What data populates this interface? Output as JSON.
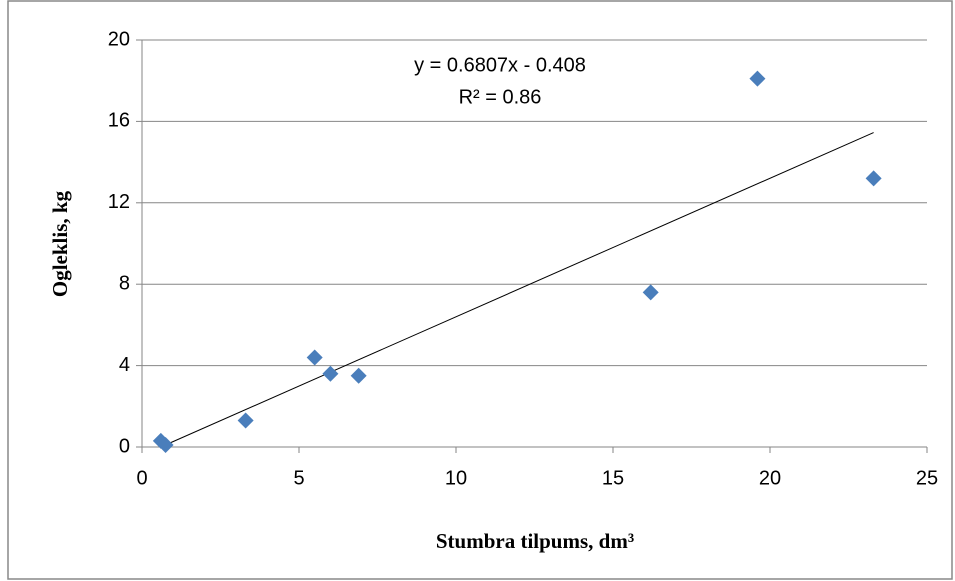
{
  "chart_data": {
    "type": "scatter",
    "x_label": "Stumbra tilpums, dm³",
    "y_label": "Ogleklis, kg",
    "series": [
      {
        "color": "#4a7ebb",
        "x": [
          0.6,
          0.75,
          3.3,
          5.5,
          6.0,
          6.9,
          16.2,
          19.6,
          23.3
        ],
        "values": [
          0.3,
          0.1,
          1.3,
          4.4,
          3.6,
          3.5,
          7.6,
          18.1,
          13.2
        ]
      }
    ],
    "trendline": {
      "slope": 0.6807,
      "intercept": -0.408,
      "equation": "y = 0.6807x - 0.408",
      "r_squared": "R² = 0.86"
    },
    "xlim": [
      0,
      25
    ],
    "xticks": [
      0,
      5,
      10,
      15,
      20,
      25
    ],
    "ylim": [
      0,
      20
    ],
    "yticks": [
      0,
      4,
      8,
      12,
      16,
      20
    ],
    "grid": true
  }
}
